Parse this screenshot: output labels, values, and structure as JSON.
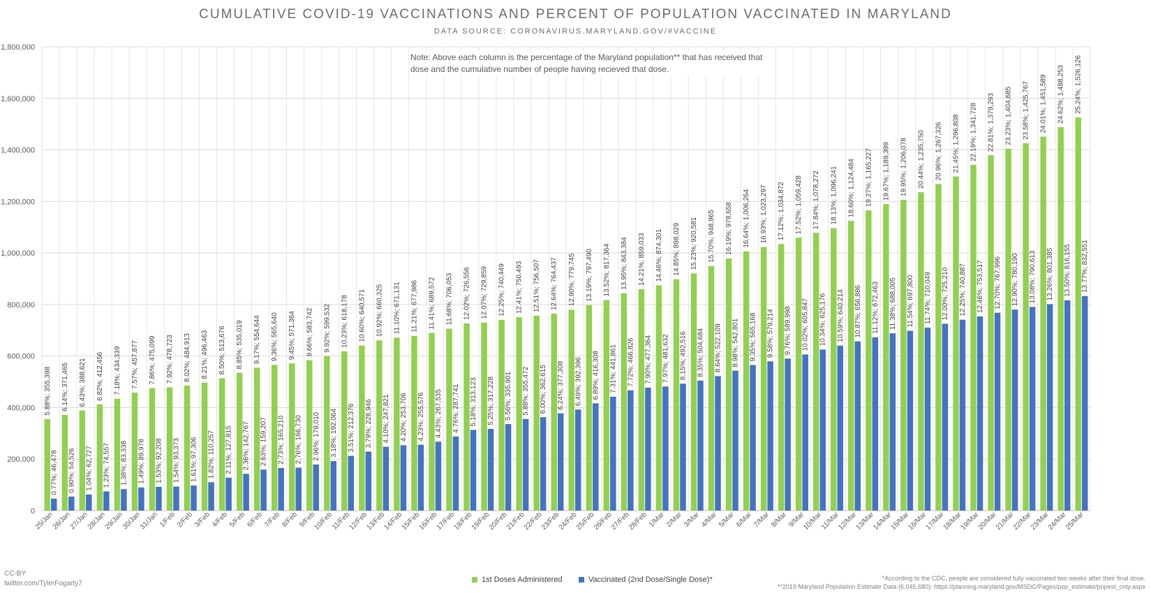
{
  "colors": {
    "first_dose": "#92d050",
    "fully_vaccinated": "#4472c4",
    "grid": "#d9d9d9"
  },
  "chart_data": {
    "type": "bar",
    "title": "CUMULATIVE COVID-19 VACCINATIONS AND PERCENT OF POPULATION VACCINATED IN MARYLAND",
    "subtitle": "DATA SOURCE: CORONAVIRUS.MARYLAND.GOV/#VACCINE",
    "note": "Note: Above each column is the percentage of the Maryland population** that has received that dose and the cumulative number of people having recieved that dose.",
    "ylim": [
      0,
      1800000
    ],
    "yticks": [
      0,
      200000,
      400000,
      600000,
      800000,
      1000000,
      1200000,
      1400000,
      1600000,
      1800000
    ],
    "ytick_labels": [
      "0",
      "200,000",
      "400,000",
      "600,000",
      "800,000",
      "1,000,000",
      "1,200,000",
      "1,400,000",
      "1,600,000",
      "1,800,000"
    ],
    "grid": true,
    "legend_position": "bottom",
    "categories": [
      "25/Jan",
      "26/Jan",
      "27/Jan",
      "28/Jan",
      "29/Jan",
      "30/Jan",
      "31/Jan",
      "1/Feb",
      "2/Feb",
      "3/Feb",
      "4/Feb",
      "5/Feb",
      "6/Feb",
      "7/Feb",
      "8/Feb",
      "9/Feb",
      "10/Feb",
      "11/Feb",
      "12/Feb",
      "13/Feb",
      "14/Feb",
      "15/Feb",
      "16/Feb",
      "17/Feb",
      "18/Feb",
      "19/Feb",
      "20/Feb",
      "21/Feb",
      "22/Feb",
      "23/Feb",
      "24/Feb",
      "25/Feb",
      "26/Feb",
      "27/Feb",
      "28/Feb",
      "1/Mar",
      "2/Mar",
      "3/Mar",
      "4/Mar",
      "5/Mar",
      "6/Mar",
      "7/Mar",
      "8/Mar",
      "9/Mar",
      "10/Mar",
      "11/Mar",
      "12/Mar",
      "13/Mar",
      "14/Mar",
      "15/Mar",
      "16/Mar",
      "17/Mar",
      "18/Mar",
      "19/Mar",
      "20/Mar",
      "21/Mar",
      "22/Mar",
      "23/Mar",
      "24/Mar",
      "25/Mar"
    ],
    "series": [
      {
        "name": "1st Doses Administered",
        "values": [
          355398,
          371465,
          388621,
          412456,
          434339,
          457877,
          475099,
          478723,
          484913,
          496463,
          513676,
          535019,
          554644,
          565640,
          571364,
          583742,
          599532,
          618178,
          640571,
          660325,
          671131,
          677986,
          689572,
          706053,
          726556,
          729859,
          740449,
          750493,
          756507,
          764437,
          779745,
          797490,
          817364,
          843384,
          859033,
          874301,
          898029,
          920581,
          948965,
          978658,
          1006264,
          1023297,
          1034872,
          1059428,
          1078272,
          1096241,
          1124484,
          1165227,
          1189399,
          1206078,
          1235750,
          1267326,
          1296808,
          1341728,
          1379293,
          1404685,
          1425767,
          1451589,
          1488253,
          1526126
        ],
        "labels": [
          "5.88%; 355,398",
          "6.14%; 371,465",
          "6.43%; 388,621",
          "6.82%; 412,456",
          "7.18%; 434,339",
          "7.57%; 457,877",
          "7.86%; 475,099",
          "7.92%; 478,723",
          "8.02%; 484,913",
          "8.21%; 496,463",
          "8.50%; 513,676",
          "8.85%; 535,019",
          "9.17%; 554,644",
          "9.36%; 565,640",
          "9.45%; 571,364",
          "9.66%; 583,742",
          "9.92%; 599,532",
          "10.23%; 618,178",
          "10.60%; 640,571",
          "10.92%; 660,325",
          "11.10%; 671,131",
          "11.21%; 677,986",
          "11.41%; 689,572",
          "11.68%; 706,053",
          "12.02%; 726,556",
          "12.07%; 729,859",
          "12.25%; 740,449",
          "12.41%; 750,493",
          "12.51%; 756,507",
          "12.64%; 764,437",
          "12.90%; 779,745",
          "13.19%; 797,490",
          "13.52%; 817,364",
          "13.95%; 843,384",
          "14.21%; 859,033",
          "14.46%; 874,301",
          "14.85%; 898,029",
          "15.23%; 920,581",
          "15.70%; 948,965",
          "16.19%; 978,658",
          "16.64%; 1,006,264",
          "16.93%; 1,023,297",
          "17.12%; 1,034,872",
          "17.52%; 1,059,428",
          "17.84%; 1,078,272",
          "18.13%; 1,096,241",
          "18.60%; 1,124,484",
          "19.27%; 1,165,227",
          "19.67%; 1,189,399",
          "19.95%; 1,206,078",
          "20.44%; 1,235,750",
          "20.96%; 1,267,326",
          "21.45%; 1,296,808",
          "22.19%; 1,341,728",
          "22.81%; 1,379,293",
          "23.23%; 1,404,685",
          "23.58%; 1,425,767",
          "24.01%; 1,451,589",
          "24.62%; 1,488,253",
          "25.24%; 1,526,126"
        ]
      },
      {
        "name": "Vaccinated (2nd Dose/Single Dose)*",
        "values": [
          46478,
          54526,
          62727,
          74557,
          83338,
          89978,
          92208,
          93373,
          97306,
          110257,
          127815,
          142767,
          159207,
          165210,
          166730,
          179010,
          192064,
          212376,
          228946,
          247821,
          253706,
          255576,
          267535,
          287741,
          313123,
          317228,
          335901,
          355472,
          362615,
          377308,
          392396,
          416308,
          441861,
          466826,
          477364,
          481632,
          492516,
          504684,
          522109,
          542801,
          565168,
          579214,
          589998,
          605847,
          625176,
          640214,
          656886,
          672463,
          688005,
          697800,
          710049,
          725210,
          740887,
          753517,
          767996,
          780190,
          790613,
          801385,
          816155,
          832551
        ],
        "labels": [
          "0.77%; 46,478",
          "0.90%; 54,526",
          "1.04%; 62,727",
          "1.23%; 74,557",
          "1.38%; 83,338",
          "1.49%; 89,978",
          "1.53%; 92,208",
          "1.54%; 93,373",
          "1.61%; 97,306",
          "1.82%; 110,257",
          "2.11%; 127,815",
          "2.36%; 142,767",
          "2.63%; 159,207",
          "2.73%; 165,210",
          "2.76%; 166,730",
          "2.96%; 179,010",
          "3.18%; 192,064",
          "3.51%; 212,376",
          "3.79%; 228,946",
          "4.10%; 247,821",
          "4.20%; 253,706",
          "4.23%; 255,576",
          "4.43%; 267,535",
          "4.76%; 287,741",
          "5.18%; 313,123",
          "5.25%; 317,228",
          "5.56%; 335,901",
          "5.88%; 355,472",
          "6.00%; 362,615",
          "6.24%; 377,308",
          "6.49%; 392,396",
          "6.89%; 416,308",
          "7.31%; 441,861",
          "7.72%; 466,826",
          "7.90%; 477,364",
          "7.97%; 481,632",
          "8.15%; 492,516",
          "8.35%; 504,684",
          "8.64%; 522,109",
          "8.98%; 542,801",
          "9.35%; 565,168",
          "9.58%; 579,214",
          "9.76%; 589,998",
          "10.02%; 605,847",
          "10.34%; 625,176",
          "10.59%; 640,214",
          "10.87%; 656,886",
          "11.12%; 672,463",
          "11.38%; 688,005",
          "11.54%; 697,800",
          "11.74%; 710,049",
          "12.00%; 725,210",
          "12.25%; 740,887",
          "12.46%; 753,517",
          "12.70%; 767,996",
          "12.90%; 780,190",
          "13.08%; 790,613",
          "13.26%; 801,385",
          "13.50%; 816,155",
          "13.77%; 832,551"
        ]
      }
    ]
  },
  "footer": {
    "credit_line1": "CC-BY",
    "credit_line2": "twitter.com/TylerFogarty7",
    "footnote1": "*According to the CDC, people are considered fully vaccinated two weeks after their final dose.",
    "footnote2": "**2019 Maryland Population Estimate Data (6,045,680): https://planning.maryland.gov/MSDC/Pages/pop_estimate/popest_cnty.aspx"
  }
}
